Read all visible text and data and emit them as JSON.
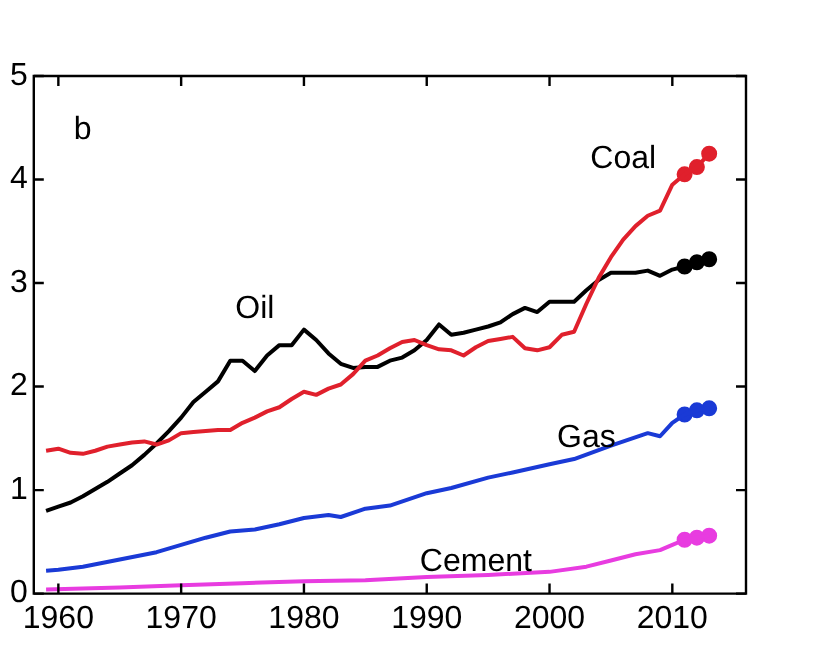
{
  "chart_data": {
    "type": "line",
    "xlim": [
      1958,
      2016
    ],
    "xticks": [
      1960,
      1970,
      1980,
      1990,
      2000,
      2010
    ],
    "ylim": [
      0,
      5
    ],
    "yticks": [
      0,
      1,
      2,
      3,
      4,
      5
    ],
    "annotations": [
      "b"
    ],
    "marker": "none",
    "legend": false,
    "series": [
      {
        "name": "Coal",
        "color": "#e0202c",
        "x": [
          1959,
          1960,
          1961,
          1962,
          1963,
          1964,
          1965,
          1966,
          1967,
          1968,
          1969,
          1970,
          1971,
          1972,
          1973,
          1974,
          1975,
          1976,
          1977,
          1978,
          1979,
          1980,
          1981,
          1982,
          1983,
          1984,
          1985,
          1986,
          1987,
          1988,
          1989,
          1990,
          1991,
          1992,
          1993,
          1994,
          1995,
          1996,
          1997,
          1998,
          1999,
          2000,
          2001,
          2002,
          2003,
          2004,
          2005,
          2006,
          2007,
          2008,
          2009,
          2010,
          2011,
          2012,
          2013
        ],
        "values": [
          1.38,
          1.4,
          1.36,
          1.35,
          1.38,
          1.42,
          1.44,
          1.46,
          1.47,
          1.44,
          1.48,
          1.55,
          1.56,
          1.57,
          1.58,
          1.58,
          1.65,
          1.7,
          1.76,
          1.8,
          1.88,
          1.95,
          1.92,
          1.98,
          2.02,
          2.12,
          2.25,
          2.3,
          2.37,
          2.43,
          2.45,
          2.4,
          2.36,
          2.35,
          2.3,
          2.38,
          2.44,
          2.46,
          2.48,
          2.37,
          2.35,
          2.38,
          2.5,
          2.53,
          2.8,
          3.05,
          3.25,
          3.42,
          3.55,
          3.65,
          3.7,
          3.95,
          4.05,
          4.12,
          4.25
        ]
      },
      {
        "name": "Oil",
        "color": "#000000",
        "x": [
          1959,
          1960,
          1961,
          1962,
          1963,
          1964,
          1965,
          1966,
          1967,
          1968,
          1969,
          1970,
          1971,
          1972,
          1973,
          1974,
          1975,
          1976,
          1977,
          1978,
          1979,
          1980,
          1981,
          1982,
          1983,
          1984,
          1985,
          1986,
          1987,
          1988,
          1989,
          1990,
          1991,
          1992,
          1993,
          1994,
          1995,
          1996,
          1997,
          1998,
          1999,
          2000,
          2001,
          2002,
          2003,
          2004,
          2005,
          2006,
          2007,
          2008,
          2009,
          2010,
          2011,
          2012,
          2013
        ],
        "values": [
          0.8,
          0.84,
          0.88,
          0.94,
          1.01,
          1.08,
          1.16,
          1.24,
          1.34,
          1.45,
          1.57,
          1.7,
          1.85,
          1.95,
          2.05,
          2.25,
          2.25,
          2.15,
          2.3,
          2.4,
          2.4,
          2.55,
          2.45,
          2.32,
          2.22,
          2.18,
          2.19,
          2.19,
          2.25,
          2.28,
          2.35,
          2.45,
          2.6,
          2.5,
          2.52,
          2.55,
          2.58,
          2.62,
          2.7,
          2.76,
          2.72,
          2.82,
          2.82,
          2.82,
          2.93,
          3.03,
          3.1,
          3.1,
          3.1,
          3.12,
          3.07,
          3.13,
          3.16,
          3.2,
          3.23
        ]
      },
      {
        "name": "Gas",
        "color": "#1a3ad6",
        "x": [
          1959,
          1960,
          1962,
          1965,
          1968,
          1970,
          1972,
          1974,
          1976,
          1978,
          1980,
          1982,
          1983,
          1985,
          1987,
          1990,
          1992,
          1995,
          1997,
          2000,
          2002,
          2005,
          2008,
          2009,
          2010,
          2011,
          2012,
          2013
        ],
        "values": [
          0.22,
          0.23,
          0.26,
          0.33,
          0.4,
          0.47,
          0.54,
          0.6,
          0.62,
          0.67,
          0.73,
          0.76,
          0.74,
          0.82,
          0.85,
          0.97,
          1.02,
          1.12,
          1.17,
          1.25,
          1.3,
          1.43,
          1.55,
          1.52,
          1.65,
          1.73,
          1.77,
          1.79
        ]
      },
      {
        "name": "Cement",
        "color": "#e83ce0",
        "x": [
          1959,
          1965,
          1970,
          1975,
          1980,
          1985,
          1990,
          1995,
          2000,
          2003,
          2005,
          2007,
          2009,
          2010,
          2011,
          2012,
          2013
        ],
        "values": [
          0.04,
          0.06,
          0.08,
          0.1,
          0.12,
          0.13,
          0.16,
          0.18,
          0.21,
          0.26,
          0.32,
          0.38,
          0.42,
          0.47,
          0.52,
          0.54,
          0.56
        ]
      },
      {
        "type": "scatter",
        "marker": "circle",
        "color": "#e0202c",
        "x": [
          2011,
          2012,
          2013
        ],
        "values": [
          4.05,
          4.12,
          4.25
        ]
      },
      {
        "type": "scatter",
        "marker": "circle",
        "color": "#000000",
        "x": [
          2011,
          2012,
          2013
        ],
        "values": [
          3.16,
          3.2,
          3.23
        ]
      },
      {
        "type": "scatter",
        "marker": "circle",
        "color": "#1a3ad6",
        "x": [
          2011,
          2012,
          2013
        ],
        "values": [
          1.73,
          1.77,
          1.79
        ]
      },
      {
        "type": "scatter",
        "marker": "circle",
        "color": "#e83ce0",
        "x": [
          2011,
          2012,
          2013
        ],
        "values": [
          0.52,
          0.54,
          0.56
        ]
      }
    ]
  }
}
